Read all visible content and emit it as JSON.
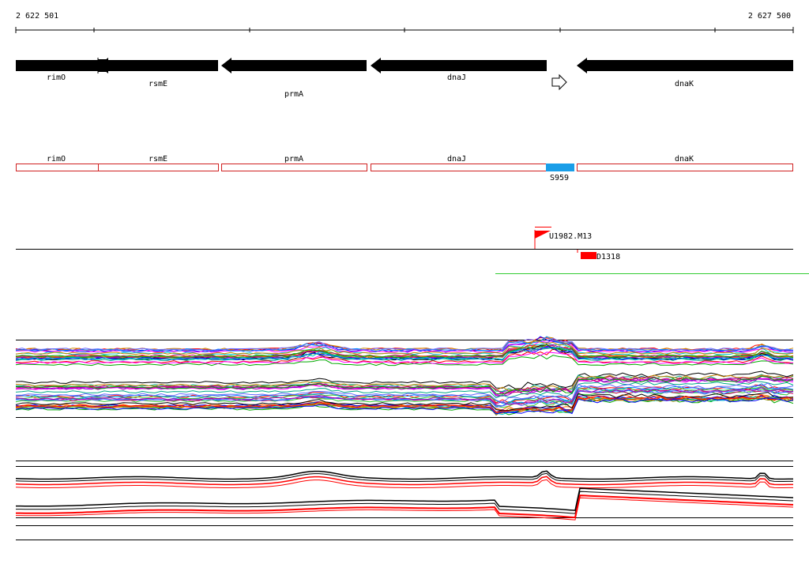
{
  "ruler": {
    "start_label": "2 622 501",
    "end_label": "2 627 500"
  },
  "genes": [
    {
      "name": "rimO"
    },
    {
      "name": "rsmE"
    },
    {
      "name": "prmA"
    },
    {
      "name": "dnaJ"
    },
    {
      "name": "dnaK"
    }
  ],
  "annotation_track": [
    {
      "name": "rimO"
    },
    {
      "name": "rsmE"
    },
    {
      "name": "prmA"
    },
    {
      "name": "dnaJ"
    },
    {
      "name": "dnaK"
    }
  ],
  "segment_label": "S959",
  "features": [
    {
      "name": "U1982.M13"
    },
    {
      "name": "D1318"
    }
  ],
  "colors": {
    "gene_arrow": "#000000",
    "annotation_box": "#d02020",
    "segment": "#1a9ee8",
    "feature": "#ff0000",
    "green_line": "#33cc33",
    "trace_upper": "#000000",
    "trace_lower": "#ff0000"
  }
}
